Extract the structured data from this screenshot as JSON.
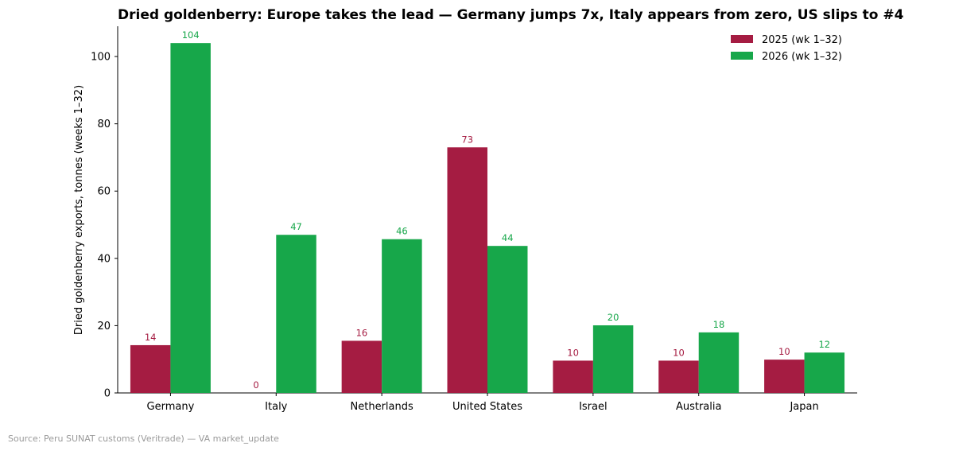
{
  "chart_data": {
    "type": "bar",
    "title": "Dried goldenberry: Europe takes the lead — Germany jumps 7x, Italy appears from zero, US slips to #4",
    "ylabel": "Dried goldenberry exports, tonnes (weeks 1–32)",
    "xlabel": "",
    "ylim": [
      0,
      109
    ],
    "yticks": [
      0,
      20,
      40,
      60,
      80,
      100
    ],
    "categories": [
      "Germany",
      "Italy",
      "Netherlands",
      "United States",
      "Israel",
      "Australia",
      "Japan"
    ],
    "series": [
      {
        "name": "2025 (wk 1–32)",
        "color": "#a51c42",
        "values": [
          14.2,
          0,
          15.5,
          73,
          9.6,
          9.6,
          9.9
        ],
        "labels": [
          "14",
          "0",
          "16",
          "73",
          "10",
          "10",
          "10"
        ]
      },
      {
        "name": "2026 (wk 1–32)",
        "color": "#17a74a",
        "values": [
          104,
          47,
          45.7,
          43.7,
          20.1,
          18,
          12
        ],
        "labels": [
          "104",
          "47",
          "46",
          "44",
          "20",
          "18",
          "12"
        ]
      }
    ],
    "legend_position": "top-right",
    "grid": false,
    "source": "Source: Peru SUNAT customs (Veritrade) — VA market_update"
  }
}
